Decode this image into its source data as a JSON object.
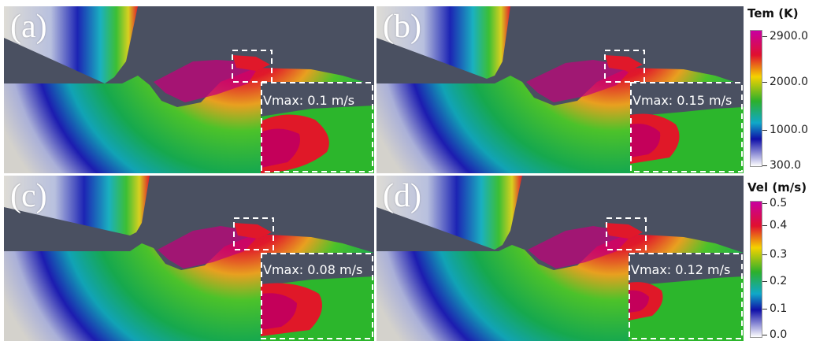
{
  "panels": [
    {
      "label": "(a)",
      "vmax": "Vmax: 0.1 m/s"
    },
    {
      "label": "(b)",
      "vmax": "Vmax: 0.15 m/s"
    },
    {
      "label": "(c)",
      "vmax": "Vmax: 0.08 m/s"
    },
    {
      "label": "(d)",
      "vmax": "Vmax: 0.12 m/s"
    }
  ],
  "legends": {
    "temperature": {
      "title": "Tem (K)",
      "ticks": [
        "2900.0",
        "2000.0",
        "1000.0",
        "300.0"
      ]
    },
    "velocity": {
      "title": "Vel (m/s)",
      "ticks": [
        "0.5",
        "0.4",
        "0.3",
        "0.2",
        "0.1",
        "0.0"
      ]
    }
  },
  "colors": {
    "background": "#4a5061",
    "substrate_light": "#d4d2cc",
    "jet_low": "#1c1cb0",
    "jet_mid": "#1ea84a",
    "jet_high": "#e0102e",
    "peak": "#c60080"
  }
}
